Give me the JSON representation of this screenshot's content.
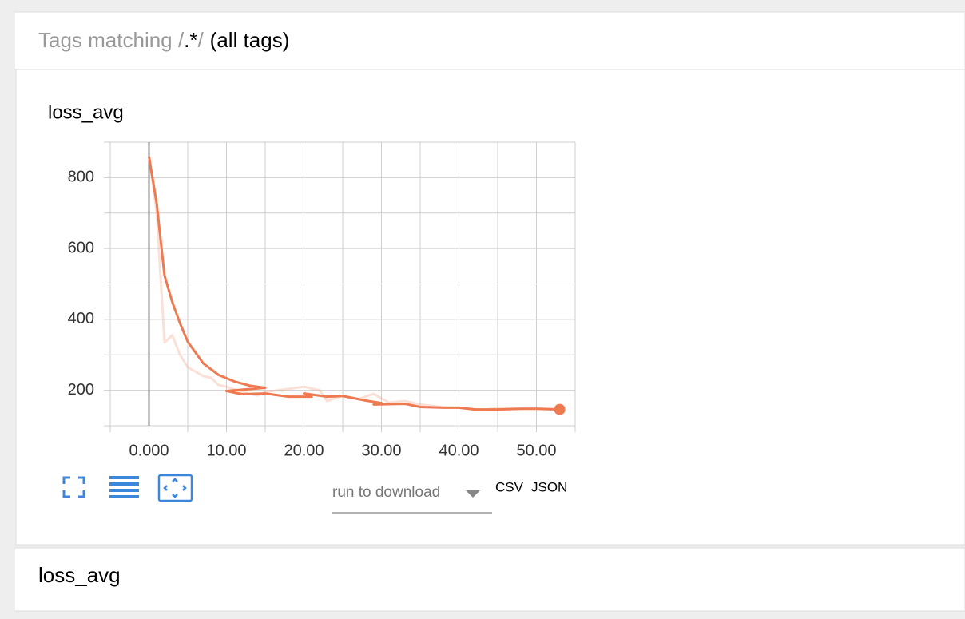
{
  "header": {
    "prefix": "Tags matching /",
    "pattern": ".*",
    "slash": "/",
    "suffix": "(all tags)"
  },
  "chart_data": {
    "type": "line",
    "title": "loss_avg",
    "xlim": [
      -5,
      55
    ],
    "ylim": [
      100,
      900
    ],
    "xticks": [
      {
        "value": 0,
        "label": "0.000"
      },
      {
        "value": 10,
        "label": "10.00"
      },
      {
        "value": 20,
        "label": "20.00"
      },
      {
        "value": 30,
        "label": "30.00"
      },
      {
        "value": 40,
        "label": "40.00"
      },
      {
        "value": 50,
        "label": "50.00"
      }
    ],
    "x_minor_ticks": [
      -5,
      5,
      15,
      25,
      35,
      45,
      55
    ],
    "yticks": [
      200,
      400,
      600,
      800
    ],
    "y_minor_ticks": [
      100,
      300,
      500,
      700,
      900
    ],
    "grid": true,
    "series": [
      {
        "color": "#f0a58a",
        "opacity": 0.35,
        "x": [
          0,
          1,
          2,
          3,
          4,
          5,
          7,
          8,
          9,
          10,
          12,
          14,
          15,
          20,
          22,
          23,
          25,
          27,
          29,
          31,
          33,
          35,
          38,
          41,
          43,
          45,
          48,
          50,
          53
        ],
        "values": [
          860,
          700,
          335,
          355,
          300,
          265,
          240,
          235,
          215,
          210,
          195,
          185,
          195,
          210,
          200,
          170,
          185,
          175,
          190,
          165,
          170,
          160,
          152,
          150,
          145,
          150,
          148,
          150,
          146
        ]
      },
      {
        "color": "#ee7a52",
        "opacity": 1,
        "x": [
          0,
          1,
          2,
          3,
          4,
          5,
          7,
          9,
          11,
          13,
          15,
          10,
          12,
          15,
          18,
          21,
          20,
          23,
          25,
          28,
          30,
          29,
          33,
          35,
          38,
          40,
          42,
          45,
          48,
          50,
          53
        ],
        "values": [
          860,
          726,
          524,
          449,
          389,
          337,
          276,
          243,
          225,
          213,
          207,
          198,
          189,
          191,
          182,
          182,
          191,
          182,
          184,
          171,
          164,
          160,
          162,
          153,
          151,
          151,
          146,
          146,
          148,
          148,
          146
        ]
      }
    ]
  },
  "controls": {
    "run_select": "run to download",
    "csv": "CSV",
    "json": "JSON"
  },
  "next_section": {
    "title": "loss_avg"
  }
}
